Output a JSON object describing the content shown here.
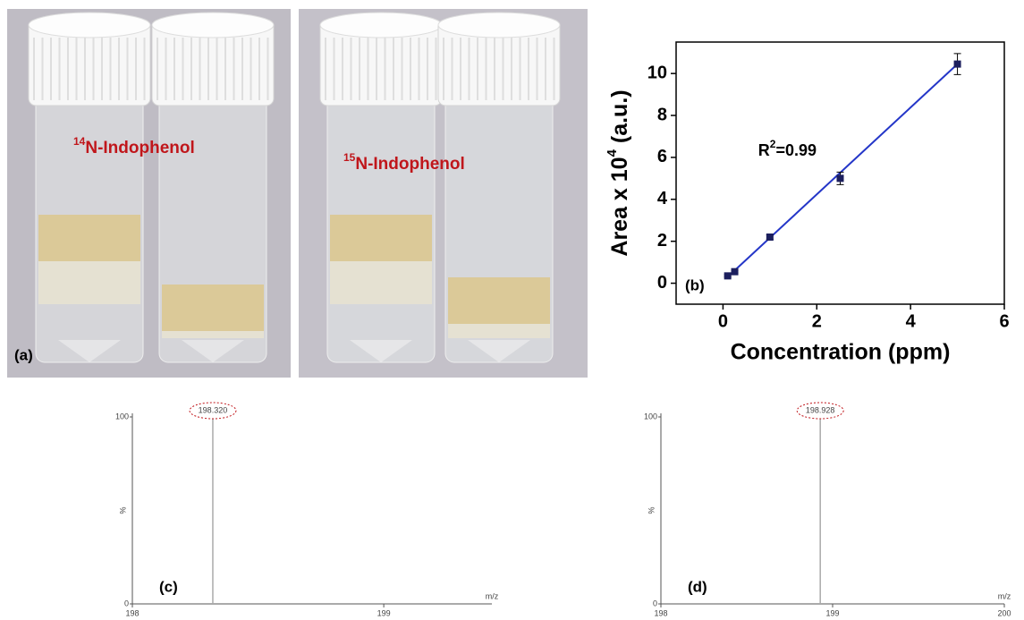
{
  "photo": {
    "labels": [
      {
        "sup": "14",
        "text": "N-Indophenol"
      },
      {
        "sup": "15",
        "text": "N-Indophenol"
      }
    ],
    "panel_label": "(a)"
  },
  "chart_data": [
    {
      "type": "scatter",
      "panel_label": "(b)",
      "x_label": "Concentration (ppm)",
      "y_label": {
        "text": "Area x 10",
        "sup": "4",
        "end": " (a.u.)"
      },
      "annotation": {
        "text": "R",
        "sup": "2",
        "end": "=0.99"
      },
      "x": [
        0.1,
        0.25,
        1,
        2.5,
        5
      ],
      "values": [
        0.35,
        0.55,
        2.2,
        5.0,
        10.45
      ],
      "errors": [
        0.05,
        0.05,
        0.1,
        0.3,
        0.5
      ],
      "color": "#1c1f5e",
      "fit": {
        "x": [
          0.1,
          5
        ],
        "values": [
          0.3,
          10.45
        ],
        "color": "#2436c8"
      },
      "xlim": [
        -1,
        6
      ],
      "xticks": [
        0,
        2,
        4,
        6
      ],
      "ylim": [
        -1,
        11.5
      ],
      "yticks": [
        0,
        2,
        4,
        6,
        8,
        10
      ]
    },
    {
      "type": "stem",
      "panel_label": "(c)",
      "x_label": "m/z",
      "y_label": "%",
      "x": [
        198.32
      ],
      "values": [
        100
      ],
      "value_labels": [
        "198.320"
      ],
      "color": "#aaaaaa",
      "xlim": [
        198,
        199.43
      ],
      "xticks": [
        198,
        199
      ],
      "ylim": [
        0,
        100
      ],
      "yticks": [
        0,
        100
      ]
    },
    {
      "type": "stem",
      "panel_label": "(d)",
      "x_label": "m/z",
      "y_label": "%",
      "x": [
        198.928
      ],
      "values": [
        100
      ],
      "value_labels": [
        "198.928"
      ],
      "color": "#aaaaaa",
      "xlim": [
        198,
        200
      ],
      "xticks": [
        198,
        199,
        200
      ],
      "ylim": [
        0,
        100
      ],
      "yticks": [
        0,
        100
      ]
    }
  ]
}
